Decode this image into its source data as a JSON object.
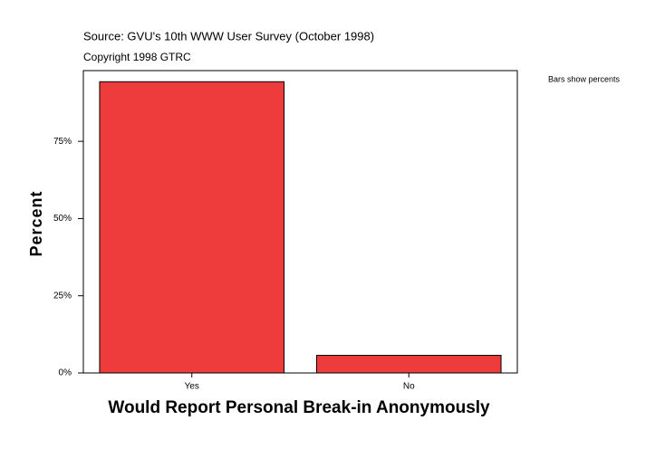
{
  "chart_data": {
    "type": "bar",
    "source": "Source: GVU's 10th WWW User Survey (October 1998)",
    "copyright": "Copyright 1998 GTRC",
    "note": "Bars show percents",
    "xlabel": "Would Report Personal Break-in Anonymously",
    "ylabel": "Percent",
    "categories": [
      "Yes",
      "No"
    ],
    "values": [
      94.3,
      5.7
    ],
    "color": "#ee3c3c",
    "ylim": [
      0,
      97.9
    ],
    "yticks": [
      {
        "value": 0,
        "label": "0%"
      },
      {
        "value": 25,
        "label": "25%"
      },
      {
        "value": 50,
        "label": "50%"
      },
      {
        "value": 75,
        "label": "75%"
      }
    ],
    "grid": false
  }
}
